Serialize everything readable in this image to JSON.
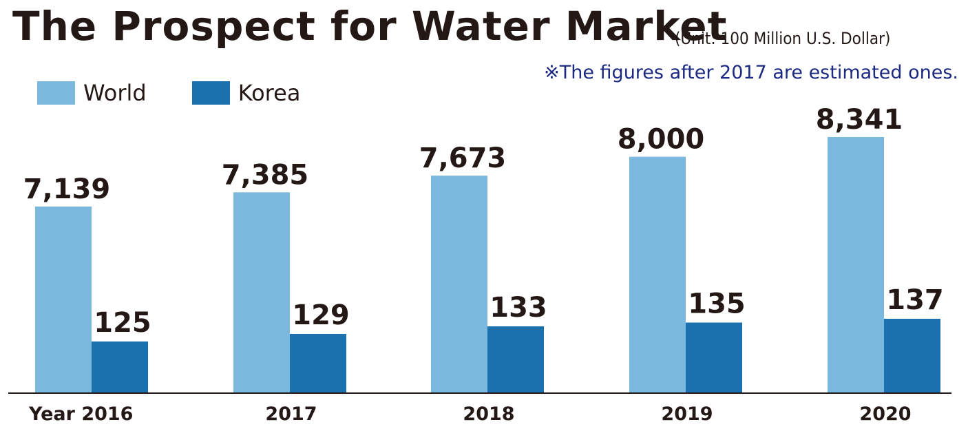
{
  "header": {
    "title": "The Prospect for Water Market",
    "unit": "(Unit: 100 Million U.S. Dollar)",
    "note": "※The figures after 2017 are estimated ones."
  },
  "colors": {
    "world": "#7ab8de",
    "korea": "#1b71ad",
    "text": "#231815",
    "note": "#1d2a82"
  },
  "chart_data": {
    "type": "bar",
    "categories": [
      "Year 2016",
      "2017",
      "2018",
      "2019",
      "2020"
    ],
    "series": [
      {
        "name": "World",
        "values": [
          7139,
          7385,
          7673,
          8000,
          8341
        ],
        "labels": [
          "7,139",
          "7,385",
          "7,673",
          "8,000",
          "8,341"
        ]
      },
      {
        "name": "Korea",
        "values": [
          125,
          129,
          133,
          135,
          137
        ],
        "labels": [
          "125",
          "129",
          "133",
          "135",
          "137"
        ]
      }
    ],
    "title": "The Prospect for Water Market",
    "xlabel": "",
    "ylabel": "",
    "legend": "top-left",
    "grid": false
  }
}
